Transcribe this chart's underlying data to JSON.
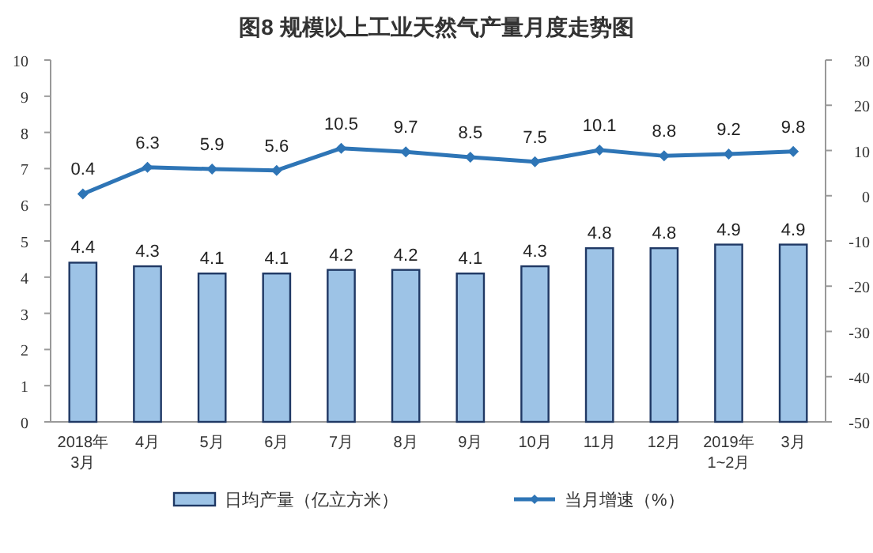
{
  "chart_data": {
    "type": "bar",
    "title": "图8 规模以上工业天然气产量月度走势图",
    "categories": [
      "2018年3月",
      "4月",
      "5月",
      "6月",
      "7月",
      "8月",
      "9月",
      "10月",
      "11月",
      "12月",
      "2019年1~2月",
      "3月"
    ],
    "series": [
      {
        "name": "日均产量（亿立方米）",
        "color": "#9dc3e6",
        "values": [
          4.4,
          4.3,
          4.1,
          4.1,
          4.2,
          4.2,
          4.1,
          4.3,
          4.8,
          4.8,
          4.9,
          4.9
        ]
      },
      {
        "name": "当月增速（%）",
        "type": "line",
        "axis": "y2",
        "color": "#2e75b6",
        "marker": "diamond",
        "values": [
          0.4,
          6.3,
          5.9,
          5.6,
          10.5,
          9.7,
          8.5,
          7.5,
          10.1,
          8.8,
          9.2,
          9.8
        ]
      }
    ],
    "ylim": [
      0,
      10
    ],
    "yticks": [
      0,
      1,
      2,
      3,
      4,
      5,
      6,
      7,
      8,
      9,
      10
    ],
    "y2lim": [
      -50,
      30
    ],
    "y2ticks": [
      -50,
      -40,
      -30,
      -20,
      -10,
      0,
      10,
      20,
      30
    ],
    "data_labels": true,
    "grid": false,
    "legend": "bottom"
  }
}
